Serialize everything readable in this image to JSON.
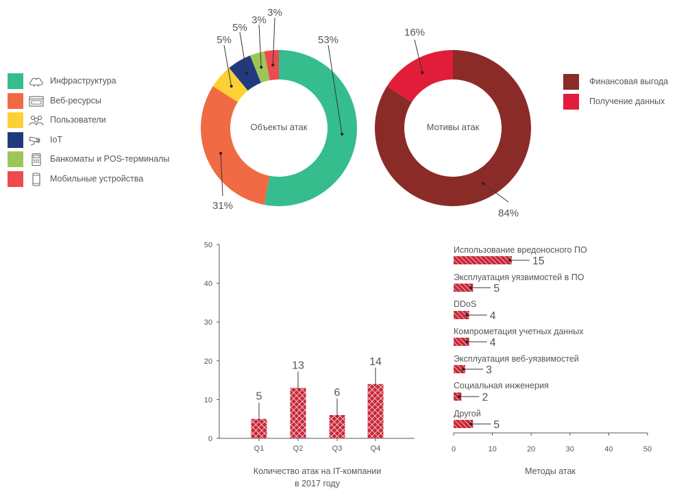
{
  "colors": {
    "infrastructure": "#35bd8e",
    "web": "#f06a43",
    "users": "#fdd035",
    "iot": "#213a7d",
    "atm": "#9dc659",
    "mobile": "#ed4b4f",
    "financial": "#8b2b27",
    "data": "#e11d3a",
    "bar": "#c8283a",
    "axis": "#555555",
    "text": "#555555"
  },
  "legend_left": [
    {
      "label": "Инфраструктура",
      "color": "#35bd8e",
      "icon": "cloud-icon"
    },
    {
      "label": "Веб-ресурсы",
      "color": "#f06a43",
      "icon": "browser-icon"
    },
    {
      "label": "Пользователи",
      "color": "#fdd035",
      "icon": "users-icon"
    },
    {
      "label": "IoT",
      "color": "#213a7d",
      "icon": "camera-icon"
    },
    {
      "label": "Банкоматы и POS-терминалы",
      "color": "#9dc659",
      "icon": "pos-terminal-icon"
    },
    {
      "label": "Мобильные устройства",
      "color": "#ed4b4f",
      "icon": "phone-icon"
    }
  ],
  "legend_right": [
    {
      "label": "Финансовая выгода",
      "color": "#8b2b27"
    },
    {
      "label": "Получение данных",
      "color": "#e11d3a"
    }
  ],
  "chart_data": [
    {
      "type": "pie",
      "donut": true,
      "center_label": "Объекты атак",
      "slices": [
        {
          "label": "Инфраструктура",
          "value": 53,
          "value_label": "53%",
          "color": "#35bd8e"
        },
        {
          "label": "Веб-ресурсы",
          "value": 31,
          "value_label": "31%",
          "color": "#f06a43"
        },
        {
          "label": "Пользователи",
          "value": 5,
          "value_label": "5%",
          "color": "#fdd035"
        },
        {
          "label": "IoT",
          "value": 5,
          "value_label": "5%",
          "color": "#213a7d"
        },
        {
          "label": "Банкоматы и POS-терминалы",
          "value": 3,
          "value_label": "3%",
          "color": "#9dc659"
        },
        {
          "label": "Мобильные устройства",
          "value": 3,
          "value_label": "3%",
          "color": "#ed4b4f"
        }
      ]
    },
    {
      "type": "pie",
      "donut": true,
      "center_label": "Мотивы атак",
      "slices": [
        {
          "label": "Финансовая выгода",
          "value": 84,
          "value_label": "84%",
          "color": "#8b2b27"
        },
        {
          "label": "Получение данных",
          "value": 16,
          "value_label": "16%",
          "color": "#e11d3a"
        }
      ]
    },
    {
      "type": "bar",
      "title_lines": [
        "Количество атак на IT-компании",
        "в 2017 году"
      ],
      "categories": [
        "Q1",
        "Q2",
        "Q3",
        "Q4"
      ],
      "values": [
        5,
        13,
        6,
        14
      ],
      "value_labels": [
        "5",
        "13",
        "6",
        "14"
      ],
      "ylim": [
        0,
        50
      ],
      "yticks": [
        "0",
        "10",
        "20",
        "30",
        "40",
        "50"
      ]
    },
    {
      "type": "bar",
      "orientation": "horizontal",
      "title": "Методы атак",
      "categories": [
        "Использование вредоносного ПО",
        "Эксплуатация уязвимостей в ПО",
        "DDoS",
        "Компрометация учетных данных",
        "Эксплуатация веб-уязвимостей",
        "Социальная инженерия",
        "Другой"
      ],
      "values": [
        15,
        5,
        4,
        4,
        3,
        2,
        5
      ],
      "value_labels": [
        "15",
        "5",
        "4",
        "4",
        "3",
        "2",
        "5"
      ],
      "xlim": [
        0,
        50
      ],
      "xticks": [
        "0",
        "10",
        "20",
        "30",
        "40",
        "50"
      ]
    }
  ]
}
